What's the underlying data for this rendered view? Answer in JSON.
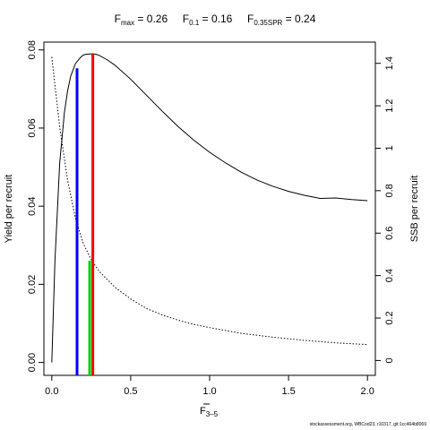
{
  "title": {
    "fmax_base": "F",
    "fmax_sub": "max",
    "fmax_val": " = 0.26",
    "f01_base": "F",
    "f01_sub": "0.1",
    "f01_val": " = 0.16",
    "fspr_base": "F",
    "fspr_sub": "0.35SPR",
    "fspr_val": " = 0.24"
  },
  "credit": "stockassessment.org, WBCod23, r10317, git:1cc464b8069",
  "chart_data": {
    "type": "line",
    "xlabel_base": "F",
    "xlabel_sub": "3–5",
    "ylabel_left": "Yield per recruit",
    "ylabel_right": "SSB per recruit",
    "xlim": [
      -0.05,
      2.05
    ],
    "ylim_left": [
      -0.0033,
      0.082
    ],
    "ylim_right": [
      -0.07,
      1.5
    ],
    "x_ticks": [
      0,
      0.5,
      1,
      1.5,
      2
    ],
    "x_tick_labels": [
      "0.0",
      "0.5",
      "1.0",
      "1.5",
      "2.0"
    ],
    "y_left_ticks": [
      0,
      0.02,
      0.04,
      0.06,
      0.08
    ],
    "y_left_tick_labels": [
      "0.00",
      "0.02",
      "0.04",
      "0.06",
      "0.08"
    ],
    "y_right_ticks": [
      0,
      0.2,
      0.4,
      0.6,
      0.8,
      1,
      1.2,
      1.4
    ],
    "y_right_tick_labels": [
      "0",
      "0.2",
      "0.4",
      "0.6",
      "0.8",
      "1",
      "1.2",
      "1.4"
    ],
    "series": [
      {
        "axis": "left",
        "style": "solid",
        "color": "#000000",
        "x": [
          0,
          0.02,
          0.05,
          0.08,
          0.1,
          0.12,
          0.15,
          0.18,
          0.2,
          0.22,
          0.25,
          0.26,
          0.28,
          0.3,
          0.35,
          0.4,
          0.5,
          0.6,
          0.7,
          0.8,
          0.9,
          1.0,
          1.1,
          1.2,
          1.3,
          1.4,
          1.5,
          1.6,
          1.7,
          1.8,
          1.9,
          2.0
        ],
        "y": [
          0,
          0.026,
          0.051,
          0.064,
          0.0695,
          0.0733,
          0.0765,
          0.078,
          0.0787,
          0.0789,
          0.079,
          0.079,
          0.0789,
          0.0786,
          0.0775,
          0.0761,
          0.0725,
          0.0684,
          0.0643,
          0.0604,
          0.0569,
          0.0538,
          0.0511,
          0.0487,
          0.0467,
          0.0451,
          0.0438,
          0.0428,
          0.042,
          0.0421,
          0.0417,
          0.0414
        ]
      },
      {
        "axis": "right",
        "style": "dotted",
        "color": "#000000",
        "x": [
          0,
          0.05,
          0.1,
          0.15,
          0.2,
          0.25,
          0.3,
          0.4,
          0.5,
          0.6,
          0.7,
          0.8,
          0.9,
          1.0,
          1.2,
          1.4,
          1.6,
          1.8,
          2.0
        ],
        "y": [
          1.43,
          1.1,
          0.85,
          0.67,
          0.55,
          0.475,
          0.42,
          0.345,
          0.29,
          0.245,
          0.215,
          0.19,
          0.17,
          0.155,
          0.128,
          0.11,
          0.095,
          0.083,
          0.075
        ]
      }
    ],
    "reference_lines": [
      {
        "label": "F0.1",
        "x": 0.16,
        "axis": "left",
        "y": 0.0753,
        "color": "#0000ff"
      },
      {
        "label": "Fmax",
        "x": 0.26,
        "axis": "left",
        "y": 0.079,
        "color": "#ff0000"
      },
      {
        "label": "F0.35SPR",
        "x": 0.24,
        "axis": "right",
        "y": 0.47,
        "color": "#00cc00"
      }
    ]
  }
}
